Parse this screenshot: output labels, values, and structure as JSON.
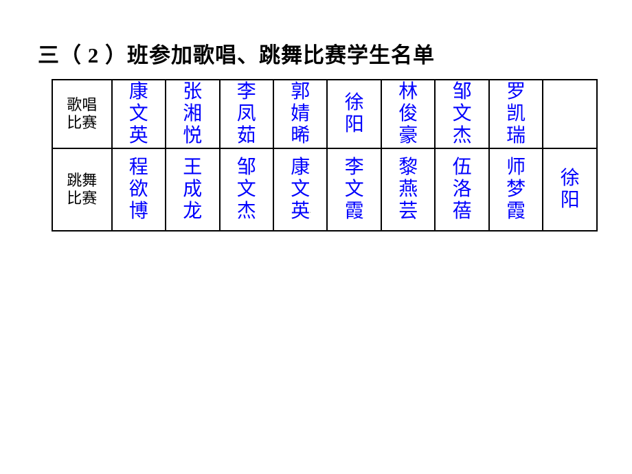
{
  "title": "三（ 2 ）班参加歌唱、跳舞比赛学生名单",
  "watermark": ".",
  "table": {
    "border_color": "#000000",
    "border_width": 2,
    "header_color": "#000000",
    "name_color": "#0000fd",
    "header_fontsize": 22,
    "name_fontsize": 28,
    "rows": [
      {
        "header": "歌唱比赛",
        "header_lines": [
          "歌唱",
          "比赛"
        ],
        "names": [
          [
            "康",
            "文",
            "英"
          ],
          [
            "张",
            "湘",
            "悦"
          ],
          [
            "李",
            "凤",
            "茹"
          ],
          [
            "郭",
            "婧",
            "晞"
          ],
          [
            "徐",
            "阳"
          ],
          [
            "林",
            "俊",
            "豪"
          ],
          [
            "邹",
            "文",
            "杰"
          ],
          [
            "罗",
            "凯",
            "瑞"
          ],
          []
        ]
      },
      {
        "header": "跳舞比赛",
        "header_lines": [
          "跳舞",
          "比赛"
        ],
        "names": [
          [
            "程",
            "欲",
            "博"
          ],
          [
            "王",
            "成",
            "龙"
          ],
          [
            "邹",
            "文",
            "杰"
          ],
          [
            "康",
            "文",
            "英"
          ],
          [
            "李",
            "文",
            "霞"
          ],
          [
            "黎",
            "燕",
            "芸"
          ],
          [
            "伍",
            "洛",
            "蓓"
          ],
          [
            "师",
            "梦",
            "霞"
          ],
          [
            "徐",
            "阳"
          ]
        ]
      }
    ]
  }
}
